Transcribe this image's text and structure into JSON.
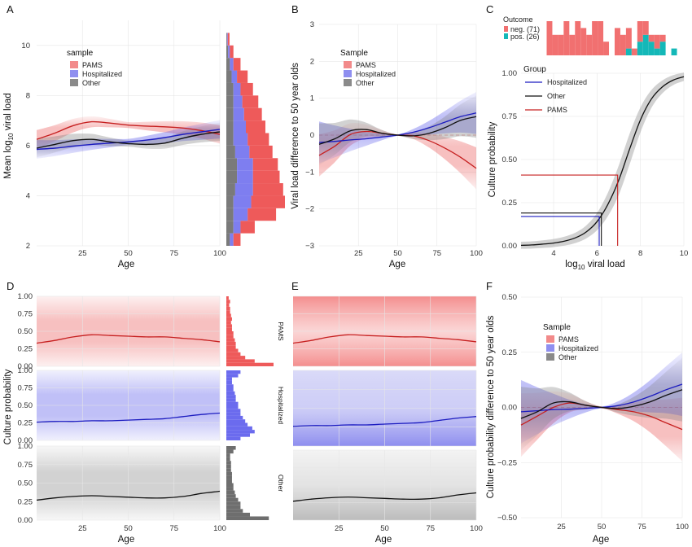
{
  "colors": {
    "pams": "#e84b4b",
    "hospitalized": "#4a4ae8",
    "other": "#7f7f7f",
    "line_pams": "#c62020",
    "line_hosp": "#1c1cc0",
    "line_other": "#111111",
    "pos": "#14b8b8",
    "neg": "#f17070"
  },
  "chart_data": [
    {
      "panel": "A",
      "type": "line",
      "xlabel": "Age",
      "ylabel": "Mean log10 viral load",
      "xticks": [
        "25",
        "50",
        "75",
        "100"
      ],
      "yticks": [
        "2",
        "4",
        "6",
        "8",
        "10"
      ],
      "xlim": [
        0,
        100
      ],
      "ylim": [
        2,
        11
      ],
      "legend": {
        "title": "sample",
        "entries": [
          "PAMS",
          "Hospitalized",
          "Other"
        ]
      },
      "series": [
        {
          "name": "PAMS",
          "x": [
            0,
            10,
            20,
            30,
            40,
            50,
            60,
            70,
            80,
            90,
            100
          ],
          "y": [
            6.25,
            6.5,
            6.8,
            6.95,
            6.9,
            6.82,
            6.78,
            6.75,
            6.7,
            6.6,
            6.45
          ]
        },
        {
          "name": "Hospitalized",
          "x": [
            0,
            10,
            20,
            30,
            40,
            50,
            60,
            70,
            80,
            90,
            100
          ],
          "y": [
            5.85,
            5.9,
            5.98,
            6.05,
            6.1,
            6.15,
            6.22,
            6.32,
            6.45,
            6.55,
            6.65
          ]
        },
        {
          "name": "Other",
          "x": [
            0,
            10,
            20,
            30,
            40,
            50,
            60,
            70,
            80,
            90,
            100
          ],
          "y": [
            5.9,
            6.05,
            6.2,
            6.25,
            6.15,
            6.08,
            6.05,
            6.1,
            6.3,
            6.45,
            6.55
          ]
        }
      ],
      "marginal": {
        "type": "histogram",
        "orientation": "horizontal",
        "bins_y": [
          2.25,
          2.75,
          3.25,
          3.75,
          4.25,
          4.75,
          5.25,
          5.75,
          6.25,
          6.75,
          7.25,
          7.75,
          8.25,
          8.75,
          9.25,
          9.75,
          10.25
        ],
        "pams": [
          0.2,
          0.4,
          0.8,
          0.95,
          0.85,
          0.75,
          0.7,
          0.65,
          0.6,
          0.55,
          0.5,
          0.45,
          0.35,
          0.3,
          0.2,
          0.1,
          0.05
        ],
        "hospitalized": [
          0.1,
          0.2,
          0.4,
          0.5,
          0.5,
          0.45,
          0.45,
          0.4,
          0.4,
          0.35,
          0.3,
          0.25,
          0.2,
          0.15,
          0.1,
          0.05,
          0.02
        ],
        "other": [
          0.1,
          0.2,
          0.2,
          0.2,
          0.25,
          0.3,
          0.3,
          0.25,
          0.2,
          0.2,
          0.2,
          0.2,
          0.2,
          0.15,
          0.1,
          0.05,
          0.02
        ]
      }
    },
    {
      "panel": "B",
      "type": "line",
      "xlabel": "Age",
      "ylabel": "Viral load difference to 50 year olds",
      "xticks": [
        "25",
        "50",
        "75",
        "100"
      ],
      "yticks": [
        "−3",
        "−2",
        "−1",
        "0",
        "1",
        "2",
        "3"
      ],
      "xlim": [
        0,
        100
      ],
      "ylim": [
        -3,
        3
      ],
      "legend": {
        "title": "Sample",
        "entries": [
          "PAMS",
          "Hospitalized",
          "Other"
        ]
      },
      "series": [
        {
          "name": "PAMS",
          "x": [
            0,
            10,
            20,
            30,
            40,
            50,
            60,
            70,
            80,
            90,
            100
          ],
          "y": [
            -0.55,
            -0.3,
            0.02,
            0.1,
            0.05,
            0,
            -0.02,
            -0.15,
            -0.35,
            -0.6,
            -0.9
          ]
        },
        {
          "name": "Hospitalized",
          "x": [
            0,
            10,
            20,
            30,
            40,
            50,
            60,
            70,
            80,
            90,
            100
          ],
          "y": [
            -0.2,
            -0.17,
            -0.13,
            -0.1,
            -0.05,
            0,
            0.08,
            0.2,
            0.35,
            0.5,
            0.6
          ]
        },
        {
          "name": "Other",
          "x": [
            0,
            10,
            20,
            30,
            40,
            50,
            60,
            70,
            80,
            90,
            100
          ],
          "y": [
            -0.25,
            -0.1,
            0.12,
            0.15,
            0.05,
            0,
            -0.02,
            0.05,
            0.2,
            0.4,
            0.5
          ]
        }
      ]
    },
    {
      "panel": "C",
      "type": "line",
      "xlabel": "log10 viral load",
      "ylabel": "Culture probability",
      "xticks": [
        "4",
        "6",
        "8",
        "10"
      ],
      "yticks": [
        "0.00",
        "0.25",
        "0.50",
        "0.75",
        "1.00"
      ],
      "xlim": [
        2.5,
        10
      ],
      "ylim": [
        0,
        1
      ],
      "legend": {
        "title": "Group",
        "entries": [
          "Hospitalized",
          "Other",
          "PAMS"
        ]
      },
      "outcome_legend": {
        "title": "Outcome",
        "entries": [
          "neg. (71)",
          "pos. (26)"
        ]
      },
      "curve": {
        "x": [
          2.5,
          3,
          3.5,
          4,
          4.5,
          5,
          5.5,
          6,
          6.5,
          7,
          7.5,
          8,
          8.5,
          9,
          9.5,
          10
        ],
        "y": [
          0.003,
          0.005,
          0.01,
          0.016,
          0.027,
          0.046,
          0.08,
          0.14,
          0.24,
          0.38,
          0.56,
          0.73,
          0.85,
          0.92,
          0.96,
          0.98
        ]
      },
      "reference_lines": [
        {
          "name": "Hospitalized",
          "x": 6.1,
          "y": 0.17
        },
        {
          "name": "Other",
          "x": 6.2,
          "y": 0.19
        },
        {
          "name": "PAMS",
          "x": 6.95,
          "y": 0.41
        }
      ],
      "histogram": {
        "bins": [
          2.7,
          3.0,
          3.3,
          3.6,
          3.9,
          4.2,
          4.5,
          4.8,
          5.1,
          5.4,
          5.7,
          6.0,
          6.3,
          6.6,
          6.9,
          7.2,
          7.5,
          7.8,
          8.1,
          8.4,
          8.7,
          9.0,
          9.3,
          9.6
        ],
        "neg": [
          5,
          3,
          3,
          5,
          3,
          5,
          4,
          3,
          5,
          5,
          2,
          0,
          4,
          3,
          3,
          1,
          3,
          2,
          1,
          2,
          1,
          0,
          0,
          0
        ],
        "pos": [
          0,
          0,
          0,
          0,
          0,
          0,
          0,
          0,
          0,
          0,
          0,
          0,
          0,
          0,
          1,
          0,
          2,
          3,
          2,
          1,
          2,
          0,
          1,
          0
        ]
      }
    },
    {
      "panel": "D",
      "type": "area",
      "xlabel": "Age",
      "ylabel": "Culture probability",
      "xticks": [
        "25",
        "50",
        "75",
        "100"
      ],
      "yticks": [
        "0.00",
        "0.25",
        "0.50",
        "0.75",
        "1.00"
      ],
      "xlim": [
        0,
        100
      ],
      "ylim": [
        0,
        1
      ],
      "facets": [
        {
          "name": "PAMS",
          "x": [
            0,
            10,
            20,
            30,
            40,
            50,
            60,
            70,
            80,
            90,
            100
          ],
          "y": [
            0.33,
            0.37,
            0.42,
            0.45,
            0.44,
            0.43,
            0.42,
            0.42,
            0.4,
            0.38,
            0.35
          ]
        },
        {
          "name": "Hospitalized",
          "x": [
            0,
            10,
            20,
            30,
            40,
            50,
            60,
            70,
            80,
            90,
            100
          ],
          "y": [
            0.26,
            0.27,
            0.27,
            0.28,
            0.28,
            0.29,
            0.3,
            0.31,
            0.34,
            0.37,
            0.39
          ]
        },
        {
          "name": "Other",
          "x": [
            0,
            10,
            20,
            30,
            40,
            50,
            60,
            70,
            80,
            90,
            100
          ],
          "y": [
            0.27,
            0.3,
            0.32,
            0.33,
            0.32,
            0.31,
            0.3,
            0.3,
            0.32,
            0.36,
            0.39
          ]
        }
      ],
      "marginal_hist": {
        "pams": [
          1,
          0.6,
          0.4,
          0.3,
          0.25,
          0.2,
          0.2,
          0.18,
          0.15,
          0.15,
          0.12,
          0.12,
          0.1,
          0.12,
          0.1,
          0.08,
          0.08,
          0.06,
          0.08,
          0.05
        ],
        "hospitalized": [
          0.3,
          0.5,
          0.6,
          0.55,
          0.45,
          0.4,
          0.35,
          0.3,
          0.3,
          0.25,
          0.25,
          0.2,
          0.2,
          0.18,
          0.15,
          0.15,
          0.12,
          0.12,
          0.25,
          0.3
        ],
        "other": [
          0.9,
          0.5,
          0.35,
          0.3,
          0.3,
          0.25,
          0.2,
          0.18,
          0.15,
          0.15,
          0.12,
          0.12,
          0.12,
          0.1,
          0.1,
          0.1,
          0.08,
          0.08,
          0.15,
          0.2
        ]
      }
    },
    {
      "panel": "E",
      "type": "area",
      "xlabel": "Age",
      "xticks": [
        "25",
        "50",
        "75",
        "100"
      ],
      "xlim": [
        0,
        100
      ],
      "ylim": [
        0,
        1
      ],
      "facets": [
        {
          "name": "PAMS",
          "x": [
            0,
            10,
            20,
            30,
            40,
            50,
            60,
            70,
            80,
            90,
            100
          ],
          "y": [
            0.33,
            0.37,
            0.42,
            0.45,
            0.44,
            0.43,
            0.42,
            0.42,
            0.4,
            0.38,
            0.35
          ]
        },
        {
          "name": "Hospitalized",
          "x": [
            0,
            10,
            20,
            30,
            40,
            50,
            60,
            70,
            80,
            90,
            100
          ],
          "y": [
            0.26,
            0.27,
            0.27,
            0.28,
            0.28,
            0.29,
            0.3,
            0.31,
            0.34,
            0.37,
            0.39
          ]
        },
        {
          "name": "Other",
          "x": [
            0,
            10,
            20,
            30,
            40,
            50,
            60,
            70,
            80,
            90,
            100
          ],
          "y": [
            0.27,
            0.3,
            0.32,
            0.33,
            0.32,
            0.31,
            0.3,
            0.3,
            0.32,
            0.36,
            0.39
          ]
        }
      ]
    },
    {
      "panel": "F",
      "type": "line",
      "xlabel": "Age",
      "ylabel": "Culture probability difference to 50 year olds",
      "xticks": [
        "25",
        "50",
        "75",
        "100"
      ],
      "yticks": [
        "−0.50",
        "−0.25",
        "0.00",
        "0.25",
        "0.50"
      ],
      "xlim": [
        0,
        100
      ],
      "ylim": [
        -0.5,
        0.5
      ],
      "legend": {
        "title": "Sample",
        "entries": [
          "PAMS",
          "Hospitalized",
          "Other"
        ]
      },
      "series": [
        {
          "name": "PAMS",
          "x": [
            0,
            10,
            20,
            30,
            40,
            50,
            60,
            70,
            80,
            90,
            100
          ],
          "y": [
            -0.08,
            -0.04,
            0.0,
            0.02,
            0.01,
            0,
            -0.01,
            -0.02,
            -0.04,
            -0.07,
            -0.1
          ]
        },
        {
          "name": "Hospitalized",
          "x": [
            0,
            10,
            20,
            30,
            40,
            50,
            60,
            70,
            80,
            90,
            100
          ],
          "y": [
            -0.02,
            -0.015,
            -0.01,
            -0.008,
            -0.004,
            0,
            0.008,
            0.025,
            0.05,
            0.08,
            0.105
          ]
        },
        {
          "name": "Other",
          "x": [
            0,
            10,
            20,
            30,
            40,
            50,
            60,
            70,
            80,
            90,
            100
          ],
          "y": [
            -0.05,
            -0.02,
            0.02,
            0.025,
            0.01,
            0,
            -0.005,
            0.005,
            0.025,
            0.055,
            0.08
          ]
        }
      ]
    }
  ]
}
